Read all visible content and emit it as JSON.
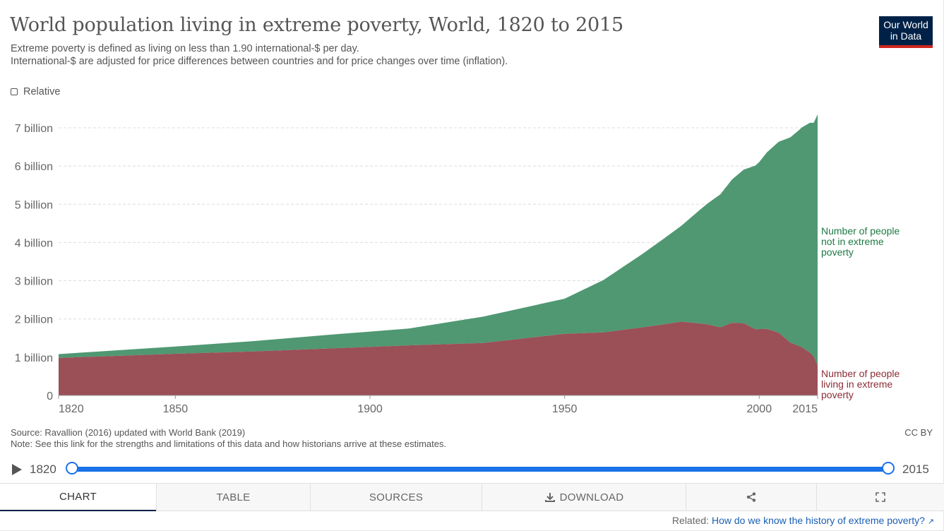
{
  "header": {
    "title": "World population living in extreme poverty, World, 1820 to 2015",
    "subtitle_line1": "Extreme poverty is defined as living on less than 1.90 international-$ per day.",
    "subtitle_line2": "International-$ are adjusted for price differences between countries and for price changes over time (inflation).",
    "logo_line1": "Our World",
    "logo_line2": "in Data"
  },
  "controls": {
    "relative_label": "Relative"
  },
  "chart_data": {
    "type": "area",
    "stacked": true,
    "x_range": [
      1820,
      2015
    ],
    "ylim": [
      0,
      7.35
    ],
    "y_unit": "billion",
    "y_ticks": [
      {
        "value": 0,
        "label": "0"
      },
      {
        "value": 1,
        "label": "1 billion"
      },
      {
        "value": 2,
        "label": "2 billion"
      },
      {
        "value": 3,
        "label": "3 billion"
      },
      {
        "value": 4,
        "label": "4 billion"
      },
      {
        "value": 5,
        "label": "5 billion"
      },
      {
        "value": 6,
        "label": "6 billion"
      },
      {
        "value": 7,
        "label": "7 billion"
      }
    ],
    "x_ticks": [
      {
        "value": 1820,
        "label": "1820"
      },
      {
        "value": 1850,
        "label": "1850"
      },
      {
        "value": 1900,
        "label": "1900"
      },
      {
        "value": 1950,
        "label": "1950"
      },
      {
        "value": 2000,
        "label": "2000"
      },
      {
        "value": 2015,
        "label": "2015"
      }
    ],
    "series": [
      {
        "name": "Number of people living in extreme poverty",
        "label_lines": [
          "Number of people",
          "living in extreme",
          "poverty"
        ],
        "color": "#9b4f57",
        "label_color": "#8b2d35",
        "points": [
          [
            1820,
            0.98
          ],
          [
            1850,
            1.09
          ],
          [
            1870,
            1.15
          ],
          [
            1890,
            1.23
          ],
          [
            1910,
            1.31
          ],
          [
            1929,
            1.37
          ],
          [
            1950,
            1.61
          ],
          [
            1960,
            1.65
          ],
          [
            1970,
            1.78
          ],
          [
            1975,
            1.85
          ],
          [
            1980,
            1.93
          ],
          [
            1985,
            1.88
          ],
          [
            1987,
            1.85
          ],
          [
            1990,
            1.78
          ],
          [
            1993,
            1.9
          ],
          [
            1996,
            1.89
          ],
          [
            1999,
            1.73
          ],
          [
            2002,
            1.74
          ],
          [
            2005,
            1.64
          ],
          [
            2008,
            1.38
          ],
          [
            2011,
            1.26
          ],
          [
            2013,
            1.12
          ],
          [
            2014,
            1.02
          ],
          [
            2015,
            0.78
          ]
        ]
      },
      {
        "name": "Number of people not in extreme poverty",
        "label_lines": [
          "Number of people",
          "not in extreme",
          "poverty"
        ],
        "color": "#4f9872",
        "label_color": "#1d7a44",
        "points": [
          [
            1820,
            0.1
          ],
          [
            1850,
            0.19
          ],
          [
            1870,
            0.27
          ],
          [
            1890,
            0.36
          ],
          [
            1910,
            0.44
          ],
          [
            1929,
            0.69
          ],
          [
            1950,
            0.92
          ],
          [
            1960,
            1.37
          ],
          [
            1970,
            1.92
          ],
          [
            1980,
            2.51
          ],
          [
            1990,
            3.48
          ],
          [
            2000,
            4.37
          ],
          [
            2010,
            5.62
          ],
          [
            2013,
            6.01
          ],
          [
            2014,
            6.11
          ],
          [
            2015,
            6.57
          ]
        ]
      }
    ]
  },
  "footer": {
    "source": "Source: Ravallion (2016) updated with World Bank (2019)",
    "note": "Note: See this link for the strengths and limitations of this data and how historians arrive at these estimates.",
    "license": "CC BY"
  },
  "timeline": {
    "start": "1820",
    "end": "2015"
  },
  "tabs": {
    "chart": "CHART",
    "table": "TABLE",
    "sources": "SOURCES",
    "download": "DOWNLOAD"
  },
  "related": {
    "prefix": "Related:",
    "link_text": "How do we know the history of extreme poverty?"
  }
}
